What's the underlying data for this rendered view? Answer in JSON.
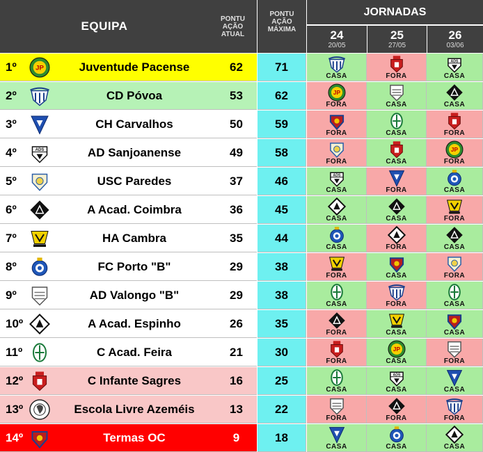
{
  "header": {
    "team": "EQUIPA",
    "current_points": [
      "PONTU",
      "AÇÃO",
      "ATUAL"
    ],
    "max_points": [
      "PONTU",
      "AÇÃO",
      "MÁXIMA"
    ],
    "rounds_title": "JORNADAS",
    "rounds": [
      {
        "number": "24",
        "date": "20/05"
      },
      {
        "number": "25",
        "date": "27/05"
      },
      {
        "number": "26",
        "date": "03/06"
      }
    ]
  },
  "colors": {
    "header_bg": "#404040",
    "max_col": "#6ef0f0",
    "home": "#a9ec9e",
    "away": "#f8a8a8",
    "leader": "#ffff00",
    "green_zone": "#b6f2b6",
    "mid_zone": "#ffffff",
    "relegation": "#f9c7c7",
    "last": "#ff0000"
  },
  "rows": [
    {
      "pos": "1º",
      "team": "Juventude Pacense",
      "crest": "juventude-pacense",
      "pts": "62",
      "max": "71",
      "zone": "leader",
      "games": [
        {
          "opp": "cd-povoa",
          "venue": "CASA"
        },
        {
          "opp": "c-infante-sagres",
          "venue": "FORA"
        },
        {
          "opp": "ad-sanjoanense",
          "venue": "CASA"
        }
      ]
    },
    {
      "pos": "2º",
      "team": "CD Póvoa",
      "crest": "cd-povoa",
      "pts": "53",
      "max": "62",
      "zone": "green_zone",
      "games": [
        {
          "opp": "juventude-pacense",
          "venue": "FORA"
        },
        {
          "opp": "ad-valongo",
          "venue": "CASA"
        },
        {
          "opp": "a-acad-coimbra",
          "venue": "CASA"
        }
      ]
    },
    {
      "pos": "3º",
      "team": "CH Carvalhos",
      "crest": "ch-carvalhos",
      "pts": "50",
      "max": "59",
      "zone": "mid_zone",
      "games": [
        {
          "opp": "termas-oc",
          "venue": "FORA"
        },
        {
          "opp": "c-acad-feira",
          "venue": "CASA"
        },
        {
          "opp": "c-infante-sagres",
          "venue": "FORA"
        }
      ]
    },
    {
      "pos": "4º",
      "team": "AD Sanjoanense",
      "crest": "ad-sanjoanense",
      "pts": "49",
      "max": "58",
      "zone": "mid_zone",
      "games": [
        {
          "opp": "usc-paredes",
          "venue": "FORA"
        },
        {
          "opp": "c-infante-sagres",
          "venue": "CASA"
        },
        {
          "opp": "juventude-pacense",
          "venue": "FORA"
        }
      ]
    },
    {
      "pos": "5º",
      "team": "USC Paredes",
      "crest": "usc-paredes",
      "pts": "37",
      "max": "46",
      "zone": "mid_zone",
      "games": [
        {
          "opp": "ad-sanjoanense",
          "venue": "CASA"
        },
        {
          "opp": "ch-carvalhos",
          "venue": "FORA"
        },
        {
          "opp": "fc-porto-b",
          "venue": "CASA"
        }
      ]
    },
    {
      "pos": "6º",
      "team": "A Acad. Coimbra",
      "crest": "a-acad-coimbra",
      "pts": "36",
      "max": "45",
      "zone": "mid_zone",
      "games": [
        {
          "opp": "a-acad-espinho",
          "venue": "CASA"
        },
        {
          "opp": "a-acad-coimbra",
          "venue": "CASA"
        },
        {
          "opp": "ha-cambra",
          "venue": "FORA"
        }
      ]
    },
    {
      "pos": "7º",
      "team": "HA Cambra",
      "crest": "ha-cambra",
      "pts": "35",
      "max": "44",
      "zone": "mid_zone",
      "games": [
        {
          "opp": "fc-porto-b",
          "venue": "CASA"
        },
        {
          "opp": "a-acad-espinho",
          "venue": "FORA"
        },
        {
          "opp": "a-acad-coimbra",
          "venue": "CASA"
        }
      ]
    },
    {
      "pos": "8º",
      "team": "FC Porto \"B\"",
      "crest": "fc-porto-b",
      "pts": "29",
      "max": "38",
      "zone": "mid_zone",
      "games": [
        {
          "opp": "ha-cambra",
          "venue": "FORA"
        },
        {
          "opp": "termas-oc",
          "venue": "CASA"
        },
        {
          "opp": "usc-paredes",
          "venue": "FORA"
        }
      ]
    },
    {
      "pos": "9º",
      "team": "AD Valongo \"B\"",
      "crest": "ad-valongo",
      "pts": "29",
      "max": "38",
      "zone": "mid_zone",
      "games": [
        {
          "opp": "c-acad-feira",
          "venue": "CASA"
        },
        {
          "opp": "cd-povoa",
          "venue": "FORA"
        },
        {
          "opp": "c-acad-feira",
          "venue": "CASA"
        }
      ]
    },
    {
      "pos": "10º",
      "team": "A Acad. Espinho",
      "crest": "a-acad-espinho",
      "pts": "26",
      "max": "35",
      "zone": "mid_zone",
      "games": [
        {
          "opp": "a-acad-coimbra",
          "venue": "FORA"
        },
        {
          "opp": "ha-cambra",
          "venue": "CASA"
        },
        {
          "opp": "termas-oc",
          "venue": "CASA"
        }
      ]
    },
    {
      "pos": "11º",
      "team": "C Acad. Feira",
      "crest": "c-acad-feira",
      "pts": "21",
      "max": "30",
      "zone": "mid_zone",
      "games": [
        {
          "opp": "c-infante-sagres",
          "venue": "FORA"
        },
        {
          "opp": "juventude-pacense",
          "venue": "CASA"
        },
        {
          "opp": "ad-valongo",
          "venue": "FORA"
        }
      ]
    },
    {
      "pos": "12º",
      "team": "C Infante Sagres",
      "crest": "c-infante-sagres",
      "pts": "16",
      "max": "25",
      "zone": "relegation",
      "games": [
        {
          "opp": "c-acad-feira",
          "venue": "CASA"
        },
        {
          "opp": "ad-sanjoanense",
          "venue": "CASA"
        },
        {
          "opp": "ch-carvalhos",
          "venue": "CASA"
        }
      ]
    },
    {
      "pos": "13º",
      "team": "Escola Livre Azeméis",
      "crest": "escola-livre-azemeis",
      "pts": "13",
      "max": "22",
      "zone": "relegation",
      "games": [
        {
          "opp": "ad-valongo",
          "venue": "FORA"
        },
        {
          "opp": "a-acad-coimbra",
          "venue": "FORA"
        },
        {
          "opp": "cd-povoa",
          "venue": "FORA"
        }
      ]
    },
    {
      "pos": "14º",
      "team": "Termas OC",
      "crest": "termas-oc",
      "pts": "9",
      "max": "18",
      "zone": "last",
      "games": [
        {
          "opp": "ch-carvalhos",
          "venue": "CASA"
        },
        {
          "opp": "fc-porto-b",
          "venue": "CASA"
        },
        {
          "opp": "a-acad-espinho",
          "venue": "CASA"
        }
      ]
    }
  ]
}
